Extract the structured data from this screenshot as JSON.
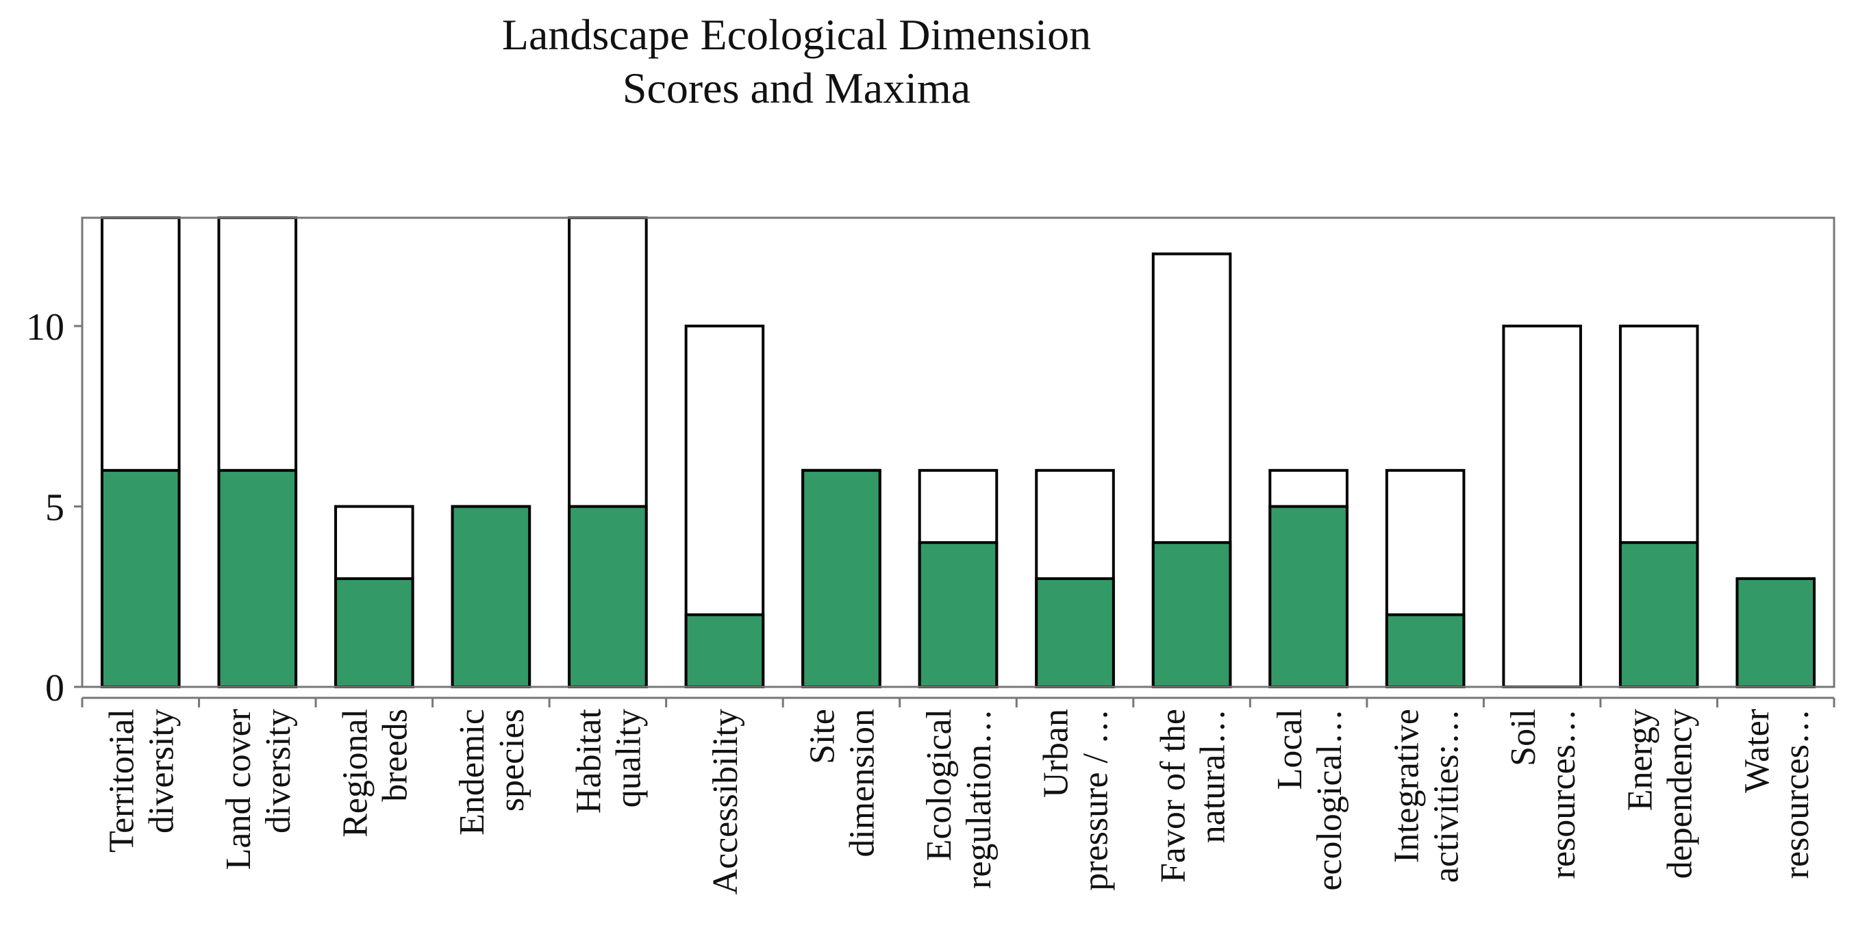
{
  "chart_data": {
    "type": "bar",
    "title": [
      "Landscape Ecological Dimension",
      "Scores and Maxima"
    ],
    "xlabel": "",
    "ylabel": "",
    "ylim": [
      0,
      13
    ],
    "yticks": [
      0,
      5,
      10
    ],
    "grid": false,
    "legend": "none",
    "categories": [
      [
        "Territorial",
        "diversity"
      ],
      [
        "Land cover",
        "diversity"
      ],
      [
        "Regional",
        "breeds"
      ],
      [
        "Endemic",
        "species"
      ],
      [
        "Habitat",
        "quality"
      ],
      [
        "Accessibility"
      ],
      [
        "Site",
        "dimension"
      ],
      [
        "Ecological",
        "regulation…"
      ],
      [
        "Urban",
        "pressure / …"
      ],
      [
        "Favor of the",
        "natural…"
      ],
      [
        "Local",
        "ecological…"
      ],
      [
        "Integrative",
        "activities:…"
      ],
      [
        "Soil",
        "resources…"
      ],
      [
        "Energy",
        "dependency"
      ],
      [
        "Water",
        "resources…"
      ]
    ],
    "series": [
      {
        "name": "Score",
        "color": "#339966",
        "values": [
          6,
          6,
          3,
          5,
          5,
          2,
          6,
          4,
          3,
          4,
          5,
          2,
          0,
          4,
          3
        ]
      },
      {
        "name": "Maximum",
        "color": "#ffffff",
        "values": [
          13,
          13,
          5,
          5,
          13,
          10,
          6,
          6,
          6,
          12,
          6,
          6,
          10,
          10,
          3
        ]
      }
    ]
  }
}
